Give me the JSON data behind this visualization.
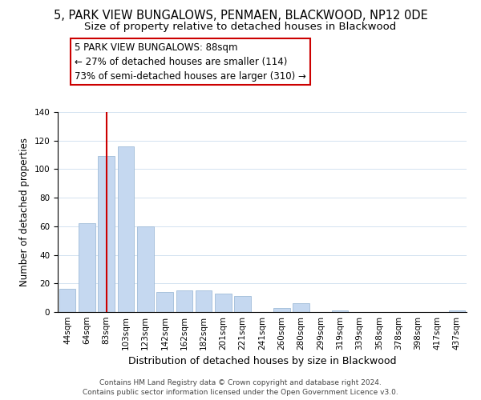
{
  "title": "5, PARK VIEW BUNGALOWS, PENMAEN, BLACKWOOD, NP12 0DE",
  "subtitle": "Size of property relative to detached houses in Blackwood",
  "xlabel": "Distribution of detached houses by size in Blackwood",
  "ylabel": "Number of detached properties",
  "categories": [
    "44sqm",
    "64sqm",
    "83sqm",
    "103sqm",
    "123sqm",
    "142sqm",
    "162sqm",
    "182sqm",
    "201sqm",
    "221sqm",
    "241sqm",
    "260sqm",
    "280sqm",
    "299sqm",
    "319sqm",
    "339sqm",
    "358sqm",
    "378sqm",
    "398sqm",
    "417sqm",
    "437sqm"
  ],
  "values": [
    16,
    62,
    109,
    116,
    60,
    14,
    15,
    15,
    13,
    11,
    0,
    3,
    6,
    0,
    1,
    0,
    0,
    0,
    0,
    0,
    1
  ],
  "bar_color": "#c5d8f0",
  "bar_edge_color": "#a0bcd8",
  "vline_x": 2,
  "vline_color": "#cc0000",
  "ylim": [
    0,
    140
  ],
  "yticks": [
    0,
    20,
    40,
    60,
    80,
    100,
    120,
    140
  ],
  "annotation_title": "5 PARK VIEW BUNGALOWS: 88sqm",
  "annotation_line1": "← 27% of detached houses are smaller (114)",
  "annotation_line2": "73% of semi-detached houses are larger (310) →",
  "annotation_box_color": "#ffffff",
  "annotation_box_edge": "#cc0000",
  "footer_line1": "Contains HM Land Registry data © Crown copyright and database right 2024.",
  "footer_line2": "Contains public sector information licensed under the Open Government Licence v3.0.",
  "title_fontsize": 10.5,
  "subtitle_fontsize": 9.5,
  "xlabel_fontsize": 9,
  "ylabel_fontsize": 8.5,
  "tick_fontsize": 7.5,
  "annotation_fontsize": 8.5,
  "footer_fontsize": 6.5
}
